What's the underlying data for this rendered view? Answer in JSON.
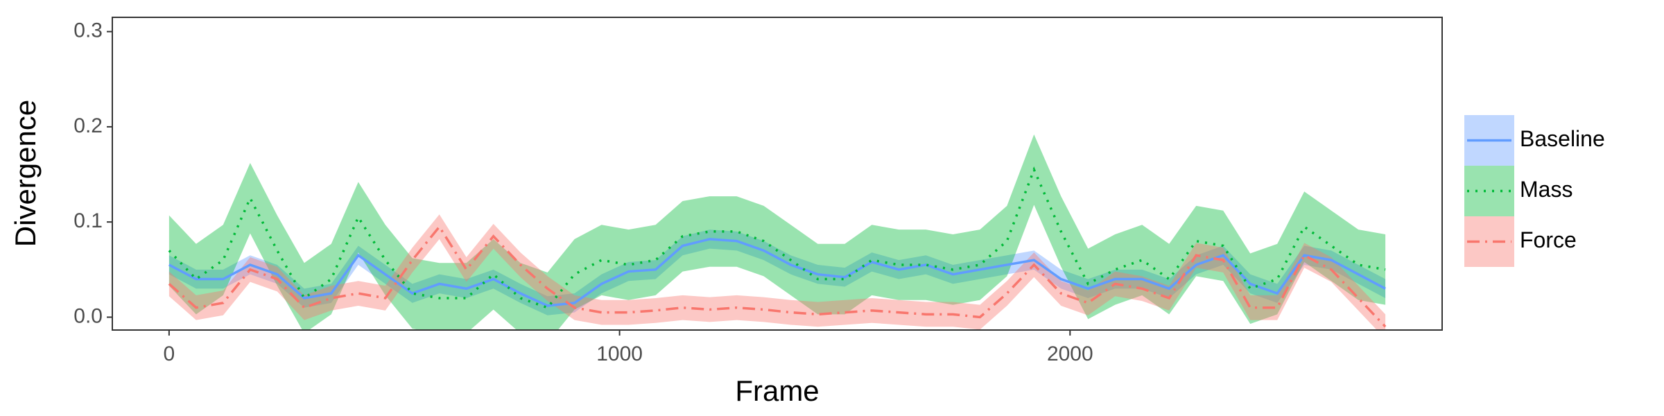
{
  "chart_data": {
    "type": "line",
    "x_label": "Frame",
    "y_label": "Divergence",
    "x": [
      0,
      60,
      120,
      180,
      240,
      300,
      360,
      420,
      480,
      540,
      600,
      660,
      720,
      780,
      840,
      900,
      960,
      1020,
      1080,
      1140,
      1200,
      1260,
      1320,
      1380,
      1440,
      1500,
      1560,
      1620,
      1680,
      1740,
      1800,
      1860,
      1920,
      1980,
      2040,
      2100,
      2160,
      2220,
      2280,
      2340,
      2400,
      2460,
      2520,
      2580,
      2640,
      2700
    ],
    "series": [
      {
        "name": "Baseline",
        "color": "#619cff",
        "dash": "solid",
        "error": 0.01,
        "values": [
          0.055,
          0.04,
          0.04,
          0.055,
          0.045,
          0.02,
          0.025,
          0.065,
          0.045,
          0.025,
          0.035,
          0.03,
          0.04,
          0.025,
          0.012,
          0.015,
          0.035,
          0.048,
          0.05,
          0.075,
          0.082,
          0.08,
          0.07,
          0.055,
          0.045,
          0.042,
          0.058,
          0.05,
          0.055,
          0.045,
          0.05,
          0.055,
          0.06,
          0.04,
          0.03,
          0.04,
          0.04,
          0.03,
          0.055,
          0.065,
          0.035,
          0.025,
          0.065,
          0.06,
          0.045,
          0.03
        ]
      },
      {
        "name": "Mass",
        "color": "#00ba38",
        "dash": "dotted",
        "error": 0.037,
        "values": [
          0.07,
          0.04,
          0.06,
          0.125,
          0.07,
          0.02,
          0.04,
          0.105,
          0.06,
          0.025,
          0.02,
          0.02,
          0.045,
          0.02,
          0.01,
          0.045,
          0.06,
          0.055,
          0.06,
          0.085,
          0.09,
          0.09,
          0.08,
          0.06,
          0.04,
          0.04,
          0.06,
          0.055,
          0.055,
          0.05,
          0.055,
          0.08,
          0.155,
          0.09,
          0.035,
          0.05,
          0.06,
          0.04,
          0.08,
          0.075,
          0.03,
          0.04,
          0.095,
          0.075,
          0.055,
          0.05
        ]
      },
      {
        "name": "Force",
        "color": "#f8766d",
        "dash": "dashdot",
        "error": 0.013,
        "values": [
          0.035,
          0.01,
          0.015,
          0.05,
          0.04,
          0.01,
          0.02,
          0.025,
          0.02,
          0.06,
          0.095,
          0.05,
          0.085,
          0.055,
          0.03,
          0.01,
          0.005,
          0.005,
          0.007,
          0.01,
          0.008,
          0.01,
          0.008,
          0.005,
          0.003,
          0.005,
          0.007,
          0.005,
          0.003,
          0.003,
          0,
          0.025,
          0.055,
          0.025,
          0.015,
          0.035,
          0.03,
          0.02,
          0.065,
          0.06,
          0.01,
          0.01,
          0.065,
          0.05,
          0.02,
          -0.01
        ]
      }
    ],
    "xlim": [
      -126,
      2826
    ],
    "ylim": [
      -0.0135,
      0.315
    ],
    "xticks": [
      0,
      1000,
      2000
    ],
    "yticks": [
      {
        "value": 0,
        "label": "0.0"
      },
      {
        "value": 0.1,
        "label": "0.1"
      },
      {
        "value": 0.2,
        "label": "0.2"
      },
      {
        "value": 0.3,
        "label": "0.3"
      }
    ],
    "grid": false,
    "legend": "right"
  }
}
